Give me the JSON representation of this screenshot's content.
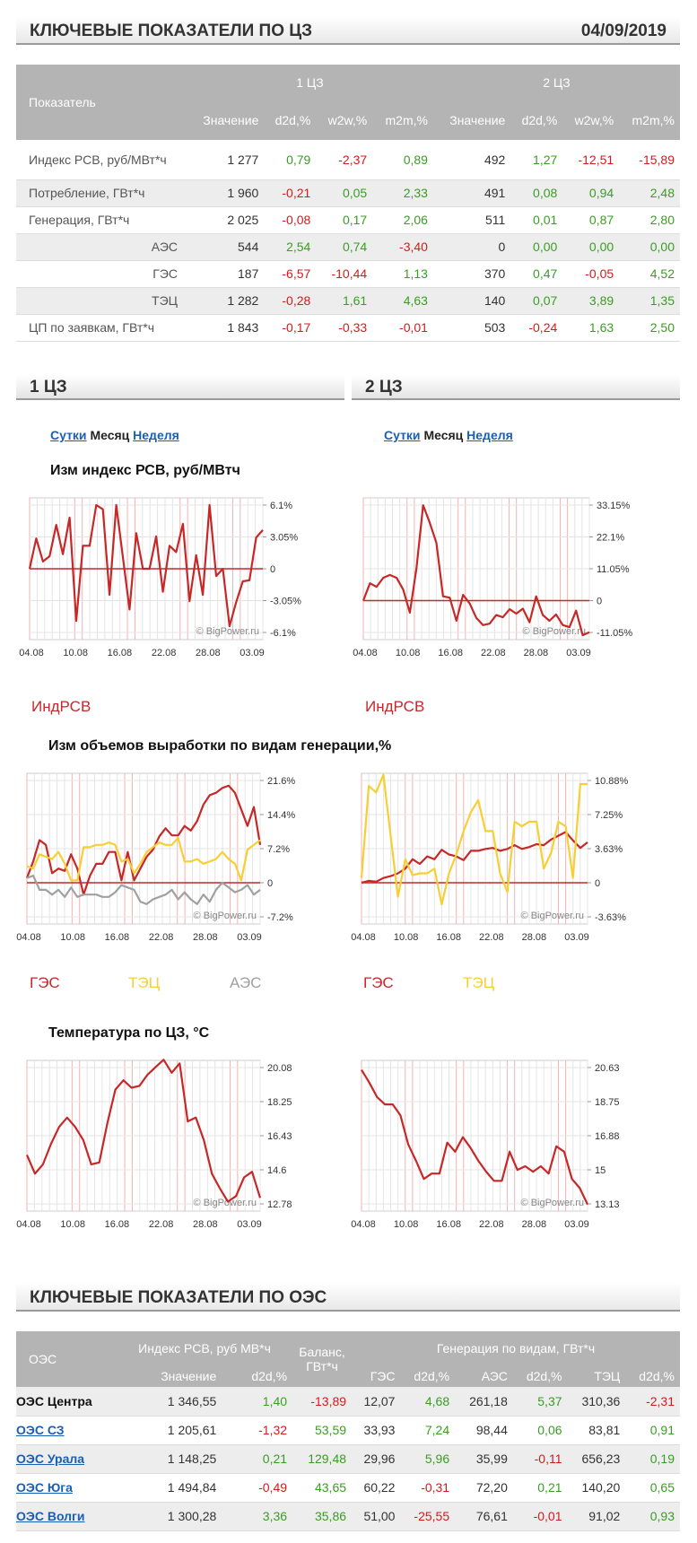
{
  "header": {
    "title": "КЛЮЧЕВЫЕ ПОКАЗАТЕЛИ ПО ЦЗ",
    "date": "04/09/2019"
  },
  "key_table": {
    "col_indicator": "Показатель",
    "zone1": "1 ЦЗ",
    "zone2": "2 ЦЗ",
    "sub_cols": [
      "Значение",
      "d2d,%",
      "w2w,%",
      "m2m,%",
      "Значение",
      "d2d,%",
      "w2w,%",
      "m2m,%"
    ],
    "rows": [
      {
        "label": "Индекс РСВ, руб/МВт*ч",
        "sub": false,
        "values": [
          "1 277",
          "0,79",
          "-2,37",
          "0,89",
          "492",
          "1,27",
          "-12,51",
          "-15,89"
        ]
      },
      {
        "label": "Потребление, ГВт*ч",
        "sub": false,
        "values": [
          "1 960",
          "-0,21",
          "0,05",
          "2,33",
          "491",
          "0,08",
          "0,94",
          "2,48"
        ]
      },
      {
        "label": "Генерация, ГВт*ч",
        "sub": false,
        "values": [
          "2 025",
          "-0,08",
          "0,17",
          "2,06",
          "511",
          "0,01",
          "0,87",
          "2,80"
        ]
      },
      {
        "label": "АЭС",
        "sub": true,
        "values": [
          "544",
          "2,54",
          "0,74",
          "-3,40",
          "0",
          "0,00",
          "0,00",
          "0,00"
        ]
      },
      {
        "label": "ГЭС",
        "sub": true,
        "values": [
          "187",
          "-6,57",
          "-10,44",
          "1,13",
          "370",
          "0,47",
          "-0,05",
          "4,52"
        ]
      },
      {
        "label": "ТЭЦ",
        "sub": true,
        "values": [
          "1 282",
          "-0,28",
          "1,61",
          "4,63",
          "140",
          "0,07",
          "3,89",
          "1,35"
        ]
      },
      {
        "label": "ЦП по заявкам, ГВт*ч",
        "sub": false,
        "values": [
          "1 843",
          "-0,17",
          "-0,33",
          "-0,01",
          "503",
          "-0,24",
          "1,63",
          "2,50"
        ]
      }
    ]
  },
  "sections": {
    "zone1": "1 ЦЗ",
    "zone2": "2 ЦЗ"
  },
  "period_links": {
    "day": "Сутки",
    "month": "Месяц",
    "week": "Неделя"
  },
  "chart_titles": {
    "rsv": "Изм индекс РСВ, руб/МВтч",
    "gen": "Изм объемов выработки по видам генерации,%",
    "temp": "Температура по ЦЗ, °C"
  },
  "watermark": "© BigPower.ru",
  "legend": {
    "rsv": "ИндРСВ",
    "ges": "ГЭС",
    "tec": "ТЭЦ",
    "aes": "АЭС"
  },
  "colors": {
    "red": "#c62828",
    "yellow": "#f7cf35",
    "gray": "#a0a0a0",
    "positive": "#3a9d23",
    "negative": "#d11c1c",
    "link": "#1a5fb4"
  },
  "chart_data": [
    {
      "type": "line",
      "id": "rsv1",
      "x_ticks": [
        "04.08",
        "10.08",
        "16.08",
        "22.08",
        "28.08",
        "03.09"
      ],
      "y_ticks": [
        "6.1%",
        "3.05%",
        "0",
        "-3.05%",
        "-6.1%"
      ],
      "ylim": [
        -6.1,
        6.1
      ],
      "series": [
        {
          "name": "ИндРСВ",
          "color": "#c62828",
          "values": [
            0,
            2.9,
            0.7,
            1.2,
            4.2,
            1.4,
            4.9,
            -5.0,
            2.2,
            2.2,
            6.1,
            5.7,
            -2.5,
            6.1,
            1.1,
            -3.9,
            3.4,
            0,
            0,
            3.1,
            -2.2,
            2.2,
            1.6,
            4.3,
            -3.1,
            1.3,
            -2.5,
            6.1,
            -0.7,
            0,
            -5.5,
            -3.2,
            -1.2,
            -1.1,
            3.0,
            3.7
          ]
        }
      ]
    },
    {
      "type": "line",
      "id": "rsv2",
      "x_ticks": [
        "04.08",
        "10.08",
        "16.08",
        "22.08",
        "28.08",
        "03.09"
      ],
      "y_ticks": [
        "33.15%",
        "22.1%",
        "11.05%",
        "0",
        "-11.05%"
      ],
      "ylim": [
        -11.05,
        33.15
      ],
      "series": [
        {
          "name": "ИндРСВ",
          "color": "#c62828",
          "values": [
            0,
            6.0,
            4.8,
            7.9,
            8.9,
            7.9,
            3.8,
            -4.2,
            11.3,
            33.1,
            27.0,
            20.0,
            1.5,
            1.0,
            -7.0,
            2.0,
            -1.0,
            -6.0,
            -8.5,
            -8.0,
            -5.0,
            -5.8,
            -3.0,
            -4.5,
            -2.8,
            -7.5,
            1.5,
            -5.0,
            -7.0,
            -4.8,
            -8.5,
            -9.2,
            -3.5,
            -12.0,
            -11.0
          ]
        }
      ]
    },
    {
      "type": "line",
      "id": "gen1",
      "x_ticks": [
        "04.08",
        "10.08",
        "16.08",
        "22.08",
        "28.08",
        "03.09"
      ],
      "y_ticks": [
        "21.6%",
        "14.4%",
        "7.2%",
        "0",
        "-7.2%"
      ],
      "ylim": [
        -7.2,
        21.6
      ],
      "series": [
        {
          "name": "ГЭС",
          "color": "#c62828",
          "values": [
            1.0,
            4.5,
            9.0,
            8.0,
            2.0,
            3.0,
            2.5,
            6.0,
            3.0,
            -2.5,
            1.5,
            4.0,
            4.0,
            6.5,
            6.5,
            0.5,
            6.5,
            0.5,
            3.0,
            5.5,
            7.0,
            9.8,
            11.5,
            10.0,
            10.0,
            12.0,
            11.0,
            13.0,
            16.5,
            18.5,
            19.0,
            20.0,
            20.5,
            19.0,
            15.5,
            12.0,
            16.0,
            8.0
          ]
        },
        {
          "name": "ТЭЦ",
          "color": "#f7cf35",
          "values": [
            3.5,
            3.0,
            6.0,
            5.5,
            5.0,
            6.5,
            4.0,
            0.5,
            0.5,
            7.5,
            7.5,
            8.0,
            8.0,
            8.5,
            8.0,
            4.5,
            5.0,
            2.0,
            4.0,
            6.5,
            7.5,
            8.5,
            8.0,
            8.0,
            9.5,
            4.5,
            4.5,
            5.0,
            4.0,
            4.5,
            5.0,
            6.5,
            5.0,
            4.0,
            0.5,
            7.0,
            8.0,
            9.0
          ]
        },
        {
          "name": "АЭС",
          "color": "#a0a0a0",
          "values": [
            1.0,
            1.5,
            -1.5,
            -1.5,
            -2.5,
            -1.5,
            -3.0,
            -1.0,
            -3.0,
            -2.5,
            -2.5,
            -2.5,
            -3.0,
            -3.0,
            -2.0,
            -0.5,
            -1.0,
            -1.5,
            -4.0,
            -4.5,
            -3.5,
            -3.0,
            -2.5,
            -1.5,
            -3.5,
            -2.0,
            -3.5,
            -4.5,
            -2.5,
            -4.0,
            -1.5,
            0,
            -1.0,
            -2.0,
            -1.5,
            -0.5,
            -2.5,
            -1.5
          ]
        }
      ]
    },
    {
      "type": "line",
      "id": "gen2",
      "x_ticks": [
        "04.08",
        "10.08",
        "16.08",
        "22.08",
        "28.08",
        "03.09"
      ],
      "y_ticks": [
        "10.88%",
        "7.25%",
        "3.63%",
        "0",
        "-3.63%"
      ],
      "ylim": [
        -3.63,
        10.88
      ],
      "series": [
        {
          "name": "ГЭС",
          "color": "#c62828",
          "values": [
            0,
            0.2,
            0.1,
            0.5,
            0.7,
            1.0,
            1.5,
            2.5,
            2.0,
            2.8,
            2.5,
            3.5,
            3.0,
            2.8,
            2.4,
            3.4,
            3.4,
            3.6,
            3.7,
            3.4,
            3.6,
            4.0,
            3.6,
            3.8,
            4.1,
            4.0,
            4.6,
            5.0,
            5.4,
            4.5,
            3.7,
            4.3
          ]
        },
        {
          "name": "ТЭЦ",
          "color": "#f7cf35",
          "values": [
            0.5,
            10.3,
            9.6,
            11.5,
            5.0,
            -1.5,
            2.5,
            0.8,
            1.0,
            1.0,
            1.5,
            -2.3,
            1.0,
            3.0,
            5.5,
            7.5,
            8.8,
            5.5,
            5.5,
            1.0,
            -1.0,
            6.5,
            6.0,
            6.5,
            6.5,
            1.5,
            3.2,
            6.5,
            6.0,
            0.5,
            10.5,
            10.5
          ]
        }
      ]
    },
    {
      "type": "line",
      "id": "temp1",
      "x_ticks": [
        "04.08",
        "10.08",
        "16.08",
        "22.08",
        "28.08",
        "03.09"
      ],
      "y_ticks": [
        "20.08",
        "18.25",
        "16.43",
        "14.6",
        "12.78"
      ],
      "ylim": [
        12.78,
        20.08
      ],
      "series": [
        {
          "name": "Температура",
          "color": "#c62828",
          "values": [
            15.4,
            14.4,
            14.9,
            16.0,
            16.9,
            17.4,
            16.9,
            16.2,
            14.9,
            15.0,
            17.1,
            18.9,
            19.4,
            19.0,
            19.1,
            19.7,
            20.1,
            20.5,
            19.8,
            20.3,
            17.2,
            17.4,
            16.2,
            14.4,
            13.6,
            12.9,
            13.2,
            14.2,
            14.5,
            13.1
          ]
        }
      ]
    },
    {
      "type": "line",
      "id": "temp2",
      "x_ticks": [
        "04.08",
        "10.08",
        "16.08",
        "22.08",
        "28.08",
        "03.09"
      ],
      "y_ticks": [
        "20.63",
        "18.75",
        "16.88",
        "15",
        "13.13"
      ],
      "ylim": [
        13.13,
        20.63
      ],
      "series": [
        {
          "name": "Температура",
          "color": "#c62828",
          "values": [
            20.5,
            19.8,
            19.0,
            18.6,
            18.6,
            18.0,
            16.4,
            15.5,
            14.5,
            14.8,
            14.8,
            16.5,
            16.0,
            16.8,
            16.2,
            15.5,
            14.9,
            14.4,
            14.4,
            16.0,
            15.0,
            15.2,
            14.9,
            15.2,
            14.8,
            16.3,
            16.0,
            14.5,
            14.0,
            13.1
          ]
        }
      ]
    }
  ],
  "oes_header": {
    "title": "КЛЮЧЕВЫЕ ПОКАЗАТЕЛИ ПО ОЭС"
  },
  "oes_table": {
    "col_oes": "ОЭС",
    "rsv_group": "Индекс РСВ, руб МВ*ч",
    "balance": "Баланс, ГВт*ч",
    "gen_group": "Генерация по видам, ГВт*ч",
    "sub_cols": [
      "Значение",
      "d2d,%",
      "ГЭС",
      "d2d,%",
      "АЭС",
      "d2d,%",
      "ТЭЦ",
      "d2d,%"
    ],
    "rows": [
      {
        "name": "ОЭС Центра",
        "link": false,
        "values": [
          "1 346,55",
          "1,40",
          "-13,89",
          "12,07",
          "4,68",
          "261,18",
          "5,37",
          "310,36",
          "-2,31"
        ]
      },
      {
        "name": "ОЭС СЗ",
        "link": true,
        "values": [
          "1 205,61",
          "-1,32",
          "53,59",
          "33,93",
          "7,24",
          "98,44",
          "0,06",
          "83,81",
          "0,91"
        ]
      },
      {
        "name": "ОЭС Урала",
        "link": true,
        "values": [
          "1 148,25",
          "0,21",
          "129,48",
          "29,96",
          "5,96",
          "35,99",
          "-0,11",
          "656,23",
          "0,19"
        ]
      },
      {
        "name": "ОЭС Юга",
        "link": true,
        "values": [
          "1 494,84",
          "-0,49",
          "43,65",
          "60,22",
          "-0,31",
          "72,20",
          "0,21",
          "140,20",
          "0,65"
        ]
      },
      {
        "name": "ОЭС Волги",
        "link": true,
        "values": [
          "1 300,28",
          "3,36",
          "35,86",
          "51,00",
          "-25,55",
          "76,61",
          "-0,01",
          "91,02",
          "0,93"
        ]
      }
    ]
  }
}
